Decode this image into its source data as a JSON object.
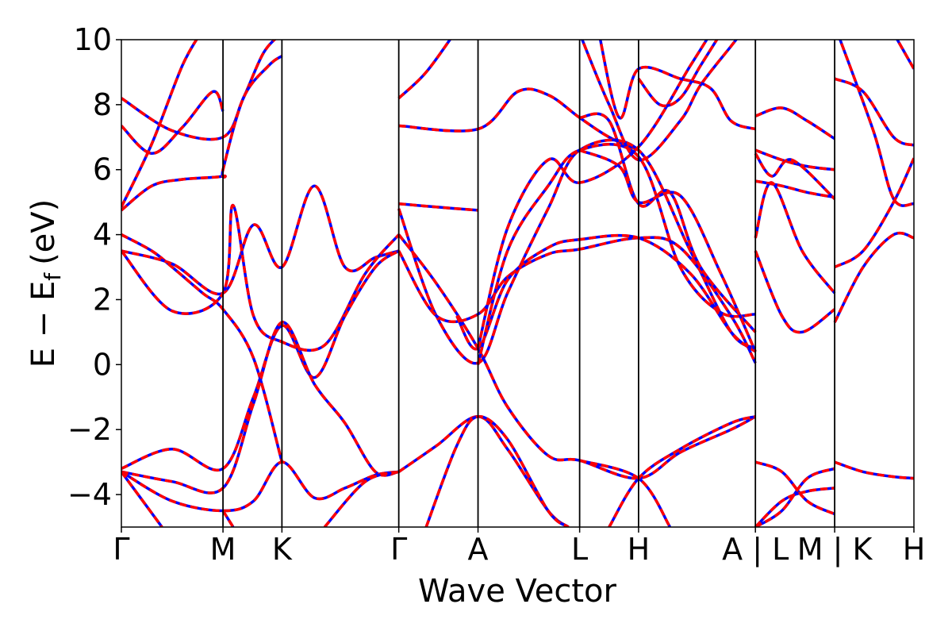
{
  "chart_data": {
    "type": "line",
    "xlabel": "Wave Vector",
    "ylabel": {
      "main": "E − E",
      "subscript": "f",
      "unit": "(eV)"
    },
    "ylim": [
      -5,
      10
    ],
    "yticks": [
      -4,
      -2,
      0,
      2,
      4,
      6,
      8,
      10
    ],
    "ytick_labels": [
      "−4",
      "−2",
      "0",
      "2",
      "4",
      "6",
      "8",
      "10"
    ],
    "grid": false,
    "high_symmetry_points": [
      {
        "label": "Γ",
        "pos": 0.0
      },
      {
        "label": "M",
        "pos": 1.0
      },
      {
        "label": "K",
        "pos": 1.58
      },
      {
        "label": "Γ",
        "pos": 2.73
      },
      {
        "label": "A",
        "pos": 3.51
      },
      {
        "label": "L",
        "pos": 4.51
      },
      {
        "label": "H",
        "pos": 5.09
      },
      {
        "label": "A | L",
        "pos": 6.24
      },
      {
        "label": "M | K",
        "pos": 7.02
      },
      {
        "label": "H",
        "pos": 7.8
      }
    ],
    "xlim": [
      0,
      7.8
    ],
    "series_style": [
      {
        "color": "#0000ff",
        "dash": "solid"
      },
      {
        "color": "#ff0000",
        "dash": "dashed"
      }
    ],
    "bands": [
      [
        [
          0,
          8.2
        ],
        [
          0.5,
          7.2
        ],
        [
          1.0,
          7.0
        ],
        [
          1.2,
          8.2
        ],
        [
          1.4,
          9.6
        ],
        [
          1.58,
          10.2
        ]
      ],
      [
        [
          0,
          7.35
        ],
        [
          0.3,
          6.5
        ],
        [
          0.6,
          7.3
        ],
        [
          0.9,
          8.4
        ],
        [
          1.0,
          7.8
        ]
      ],
      [
        [
          0,
          4.85
        ],
        [
          0.3,
          6.8
        ],
        [
          0.6,
          9.2
        ],
        [
          0.8,
          10.3
        ]
      ],
      [
        [
          0,
          4.75
        ],
        [
          0.3,
          5.5
        ],
        [
          0.6,
          5.7
        ],
        [
          1.0,
          5.8
        ],
        [
          1.0,
          6.0
        ],
        [
          1.2,
          8.2
        ],
        [
          1.45,
          9.2
        ],
        [
          1.58,
          9.5
        ]
      ],
      [
        [
          0,
          4.0
        ],
        [
          0.3,
          3.5
        ],
        [
          0.5,
          3.0
        ],
        [
          0.8,
          2.2
        ],
        [
          1.0,
          1.7
        ],
        [
          1.3,
          0.2
        ],
        [
          1.58,
          -3.0
        ]
      ],
      [
        [
          0,
          3.5
        ],
        [
          0.5,
          3.1
        ],
        [
          1.0,
          2.2
        ],
        [
          1.3,
          4.3
        ],
        [
          1.58,
          3.0
        ],
        [
          1.9,
          5.5
        ],
        [
          2.2,
          3.0
        ],
        [
          2.5,
          3.3
        ],
        [
          2.73,
          3.5
        ]
      ],
      [
        [
          0,
          3.5
        ],
        [
          0.5,
          1.65
        ],
        [
          1.0,
          2.2
        ],
        [
          1.1,
          4.9
        ],
        [
          1.3,
          1.5
        ],
        [
          1.58,
          0.7
        ],
        [
          2.0,
          0.6
        ],
        [
          2.4,
          2.8
        ],
        [
          2.73,
          4.0
        ]
      ],
      [
        [
          0,
          -3.2
        ],
        [
          0.5,
          -2.6
        ],
        [
          1.0,
          -3.2
        ],
        [
          1.3,
          -1.0
        ],
        [
          1.58,
          1.2
        ],
        [
          1.9,
          -0.4
        ],
        [
          2.2,
          1.5
        ],
        [
          2.5,
          3.0
        ],
        [
          2.73,
          3.5
        ]
      ],
      [
        [
          0,
          -3.3
        ],
        [
          0.5,
          -3.6
        ],
        [
          1.0,
          -3.8
        ],
        [
          1.3,
          -1.2
        ],
        [
          1.58,
          1.3
        ],
        [
          1.9,
          -0.6
        ],
        [
          2.2,
          -1.8
        ],
        [
          2.5,
          -3.3
        ],
        [
          2.73,
          -3.3
        ]
      ],
      [
        [
          0,
          -3.3
        ],
        [
          0.5,
          -4.2
        ],
        [
          1.0,
          -4.5
        ],
        [
          1.3,
          -4.2
        ],
        [
          1.58,
          -3.0
        ],
        [
          1.9,
          -4.1
        ],
        [
          2.2,
          -3.8
        ],
        [
          2.5,
          -3.4
        ],
        [
          2.73,
          -3.3
        ]
      ],
      [
        [
          0,
          -3.3
        ],
        [
          0.4,
          -5.0
        ]
      ],
      [
        [
          1.0,
          -4.5
        ],
        [
          1.1,
          -5.0
        ]
      ],
      [
        [
          2.0,
          -5.0
        ],
        [
          2.4,
          -3.6
        ],
        [
          2.73,
          -3.3
        ]
      ],
      [
        [
          2.73,
          4.95
        ],
        [
          3.1,
          4.85
        ],
        [
          3.51,
          4.75
        ]
      ],
      [
        [
          2.73,
          7.35
        ],
        [
          3.51,
          7.25
        ],
        [
          3.9,
          8.4
        ],
        [
          4.2,
          8.3
        ],
        [
          4.51,
          7.6
        ],
        [
          4.8,
          7.0
        ],
        [
          5.09,
          6.6
        ]
      ],
      [
        [
          2.73,
          8.2
        ],
        [
          3.0,
          9.0
        ],
        [
          3.3,
          10.3
        ]
      ],
      [
        [
          2.73,
          4.0
        ],
        [
          3.1,
          2.5
        ],
        [
          3.51,
          0.5
        ],
        [
          3.8,
          -1.3
        ],
        [
          4.2,
          -2.8
        ],
        [
          4.51,
          -2.95
        ],
        [
          5.09,
          -3.5
        ],
        [
          5.5,
          -2.7
        ],
        [
          6.0,
          -2.0
        ],
        [
          6.24,
          -1.6
        ]
      ],
      [
        [
          2.73,
          -3.3
        ],
        [
          3.1,
          -2.5
        ],
        [
          3.51,
          -1.6
        ],
        [
          3.8,
          -2.6
        ],
        [
          4.2,
          -4.5
        ],
        [
          4.4,
          -5.0
        ]
      ],
      [
        [
          3.0,
          -5.0
        ],
        [
          3.3,
          -2.5
        ],
        [
          3.51,
          -1.6
        ],
        [
          3.8,
          -2.3
        ],
        [
          4.2,
          -4.5
        ],
        [
          4.4,
          -5.0
        ]
      ],
      [
        [
          2.73,
          4.8
        ],
        [
          3.1,
          1.5
        ],
        [
          3.51,
          0.05
        ],
        [
          3.8,
          2.2
        ],
        [
          4.2,
          4.8
        ],
        [
          4.51,
          6.6
        ],
        [
          5.09,
          6.6
        ],
        [
          5.6,
          3.5
        ],
        [
          6.0,
          1.0
        ],
        [
          6.24,
          0.5
        ]
      ],
      [
        [
          2.73,
          3.5
        ],
        [
          3.1,
          1.5
        ],
        [
          3.51,
          1.55
        ],
        [
          3.8,
          2.7
        ],
        [
          4.2,
          3.4
        ],
        [
          4.51,
          3.55
        ],
        [
          5.09,
          3.9
        ],
        [
          5.5,
          3.6
        ],
        [
          6.0,
          1.5
        ],
        [
          6.24,
          0.05
        ]
      ],
      [
        [
          3.3,
          1.5
        ],
        [
          3.51,
          0.5
        ],
        [
          3.8,
          2.6
        ],
        [
          4.2,
          3.6
        ],
        [
          4.51,
          3.85
        ],
        [
          5.09,
          3.9
        ],
        [
          5.6,
          2.8
        ],
        [
          6.0,
          1.0
        ],
        [
          6.24,
          0.4
        ]
      ],
      [
        [
          3.51,
          0.0
        ],
        [
          3.8,
          3.5
        ],
        [
          4.2,
          5.5
        ],
        [
          4.51,
          6.6
        ],
        [
          5.09,
          6.4
        ],
        [
          5.5,
          3.0
        ],
        [
          5.9,
          1.6
        ],
        [
          6.24,
          1.55
        ]
      ],
      [
        [
          3.51,
          0.5
        ],
        [
          3.8,
          4.2
        ],
        [
          4.2,
          6.3
        ],
        [
          4.51,
          5.6
        ],
        [
          5.09,
          6.7
        ],
        [
          5.6,
          9.2
        ],
        [
          5.8,
          10.2
        ]
      ],
      [
        [
          4.51,
          10.2
        ],
        [
          4.8,
          8.0
        ],
        [
          5.09,
          6.3
        ],
        [
          5.5,
          7.5
        ],
        [
          5.7,
          8.6
        ],
        [
          6.0,
          9.8
        ],
        [
          6.1,
          10.2
        ]
      ],
      [
        [
          4.51,
          7.6
        ],
        [
          4.8,
          7.5
        ],
        [
          5.09,
          4.95
        ],
        [
          5.4,
          5.3
        ],
        [
          5.7,
          3.0
        ],
        [
          6.24,
          1.0
        ]
      ],
      [
        [
          4.7,
          10.2
        ],
        [
          4.9,
          7.6
        ],
        [
          5.09,
          9.1
        ],
        [
          5.5,
          8.8
        ],
        [
          5.8,
          8.5
        ],
        [
          6.0,
          7.5
        ],
        [
          6.24,
          7.25
        ]
      ],
      [
        [
          5.09,
          8.8
        ],
        [
          5.3,
          8.0
        ],
        [
          5.5,
          8.2
        ],
        [
          5.7,
          9.2
        ],
        [
          5.9,
          10.2
        ]
      ],
      [
        [
          4.51,
          6.6
        ],
        [
          4.9,
          6.1
        ],
        [
          5.09,
          5.0
        ],
        [
          5.5,
          5.2
        ],
        [
          5.9,
          2.8
        ],
        [
          6.24,
          0.4
        ]
      ],
      [
        [
          4.51,
          -2.95
        ],
        [
          5.09,
          -3.5
        ],
        [
          5.4,
          -5.0
        ]
      ],
      [
        [
          4.8,
          -5.0
        ],
        [
          5.09,
          -3.5
        ],
        [
          5.5,
          -2.6
        ],
        [
          6.0,
          -1.8
        ],
        [
          6.24,
          -1.6
        ]
      ],
      [
        [
          6.24,
          7.65
        ],
        [
          6.5,
          7.9
        ],
        [
          6.75,
          7.5
        ],
        [
          7.02,
          6.95
        ]
      ],
      [
        [
          6.24,
          6.6
        ],
        [
          6.5,
          6.3
        ],
        [
          6.75,
          6.1
        ],
        [
          7.02,
          6.0
        ]
      ],
      [
        [
          6.24,
          6.5
        ],
        [
          6.4,
          5.8
        ],
        [
          6.6,
          6.3
        ],
        [
          7.02,
          5.1
        ]
      ],
      [
        [
          6.24,
          5.65
        ],
        [
          6.5,
          5.5
        ],
        [
          6.75,
          5.3
        ],
        [
          7.02,
          5.15
        ]
      ],
      [
        [
          6.24,
          3.9
        ],
        [
          6.4,
          5.6
        ],
        [
          6.7,
          3.5
        ],
        [
          7.02,
          2.2
        ]
      ],
      [
        [
          6.24,
          3.5
        ],
        [
          6.5,
          1.5
        ],
        [
          6.7,
          1.0
        ],
        [
          7.02,
          1.7
        ]
      ],
      [
        [
          6.24,
          -3.0
        ],
        [
          6.5,
          -3.3
        ],
        [
          6.75,
          -4.2
        ],
        [
          7.02,
          -4.6
        ]
      ],
      [
        [
          6.24,
          -5.0
        ],
        [
          6.5,
          -4.5
        ],
        [
          6.75,
          -3.5
        ],
        [
          7.02,
          -3.2
        ]
      ],
      [
        [
          6.24,
          -5.0
        ],
        [
          6.5,
          -4.2
        ],
        [
          6.75,
          -3.9
        ],
        [
          7.02,
          -3.8
        ]
      ],
      [
        [
          7.02,
          8.8
        ],
        [
          7.3,
          8.4
        ],
        [
          7.6,
          7.0
        ],
        [
          7.8,
          6.75
        ]
      ],
      [
        [
          7.05,
          10.2
        ],
        [
          7.4,
          7.2
        ],
        [
          7.6,
          5.1
        ],
        [
          7.8,
          4.95
        ]
      ],
      [
        [
          7.02,
          1.3
        ],
        [
          7.3,
          3.0
        ],
        [
          7.6,
          4.0
        ],
        [
          7.8,
          3.9
        ]
      ],
      [
        [
          7.02,
          3.0
        ],
        [
          7.3,
          3.5
        ],
        [
          7.6,
          5.0
        ],
        [
          7.8,
          6.35
        ]
      ],
      [
        [
          7.02,
          -3.0
        ],
        [
          7.3,
          -3.3
        ],
        [
          7.6,
          -3.45
        ],
        [
          7.8,
          -3.5
        ]
      ],
      [
        [
          7.6,
          10.2
        ],
        [
          7.8,
          9.1
        ]
      ]
    ]
  }
}
